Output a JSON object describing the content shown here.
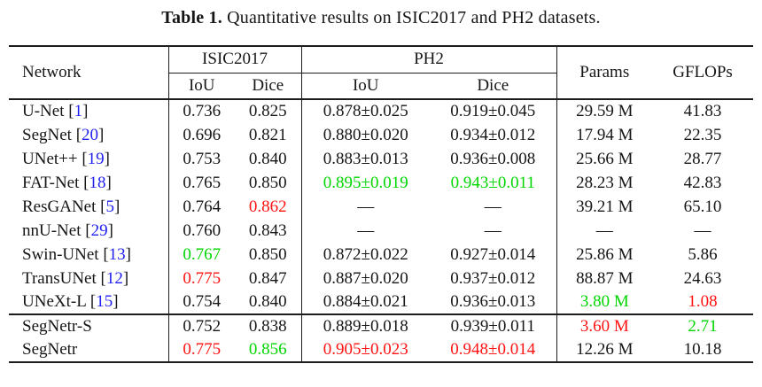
{
  "caption": {
    "label": "Table 1.",
    "text": "Quantitative results on ISIC2017 and PH2 datasets."
  },
  "colors": {
    "citation_blue": "#1f1fee",
    "best_red": "#ff1212",
    "second_best_green": "#00d600",
    "text": "#161616",
    "rule": "#1c1c1c",
    "background": "#ffffff"
  },
  "table": {
    "headers": {
      "network": "Network",
      "group_isic2017": "ISIC2017",
      "group_ph2": "PH2",
      "sub": [
        "IoU",
        "Dice",
        "IoU",
        "Dice"
      ],
      "params": "Params",
      "gflops": "GFLOPs"
    },
    "rows": [
      {
        "network": "U-Net",
        "cite": "1",
        "cells": [
          {
            "v": "0.736"
          },
          {
            "v": "0.825"
          },
          {
            "v": "0.878±0.025"
          },
          {
            "v": "0.919±0.045"
          },
          {
            "v": "29.59 M"
          },
          {
            "v": "41.83"
          }
        ]
      },
      {
        "network": "SegNet",
        "cite": "20",
        "cells": [
          {
            "v": "0.696"
          },
          {
            "v": "0.821"
          },
          {
            "v": "0.880±0.020"
          },
          {
            "v": "0.934±0.012"
          },
          {
            "v": "17.94 M"
          },
          {
            "v": "22.35"
          }
        ]
      },
      {
        "network": "UNet++",
        "cite": "19",
        "cells": [
          {
            "v": "0.753"
          },
          {
            "v": "0.840"
          },
          {
            "v": "0.883±0.013"
          },
          {
            "v": "0.936±0.008"
          },
          {
            "v": "25.66 M"
          },
          {
            "v": "28.77"
          }
        ]
      },
      {
        "network": "FAT-Net",
        "cite": "18",
        "cells": [
          {
            "v": "0.765"
          },
          {
            "v": "0.850"
          },
          {
            "v": "0.895±0.019",
            "c": "green"
          },
          {
            "v": "0.943±0.011",
            "c": "green"
          },
          {
            "v": "28.23 M"
          },
          {
            "v": "42.83"
          }
        ]
      },
      {
        "network": "ResGANet",
        "cite": "5",
        "cells": [
          {
            "v": "0.764"
          },
          {
            "v": "0.862",
            "c": "red"
          },
          {
            "v": "—"
          },
          {
            "v": "—"
          },
          {
            "v": "39.21 M"
          },
          {
            "v": "65.10"
          }
        ]
      },
      {
        "network": "nnU-Net",
        "cite": "29",
        "cells": [
          {
            "v": "0.760"
          },
          {
            "v": "0.843"
          },
          {
            "v": "—"
          },
          {
            "v": "—"
          },
          {
            "v": "—"
          },
          {
            "v": "—"
          }
        ]
      },
      {
        "network": "Swin-UNet",
        "cite": "13",
        "cells": [
          {
            "v": "0.767",
            "c": "green"
          },
          {
            "v": "0.850"
          },
          {
            "v": "0.872±0.022"
          },
          {
            "v": "0.927±0.014"
          },
          {
            "v": "25.86 M"
          },
          {
            "v": "5.86"
          }
        ]
      },
      {
        "network": "TransUNet",
        "cite": "12",
        "cells": [
          {
            "v": "0.775",
            "c": "red"
          },
          {
            "v": "0.847"
          },
          {
            "v": "0.887±0.020"
          },
          {
            "v": "0.937±0.012"
          },
          {
            "v": "88.87 M"
          },
          {
            "v": "24.63"
          }
        ]
      },
      {
        "network": "UNeXt-L",
        "cite": "15",
        "cells": [
          {
            "v": "0.754"
          },
          {
            "v": "0.840"
          },
          {
            "v": "0.884±0.021"
          },
          {
            "v": "0.936±0.013"
          },
          {
            "v": "3.80 M",
            "c": "green"
          },
          {
            "v": "1.08",
            "c": "red"
          }
        ]
      },
      {
        "network": "SegNetr-S",
        "cite": null,
        "rule_above": true,
        "cells": [
          {
            "v": "0.752"
          },
          {
            "v": "0.838"
          },
          {
            "v": "0.889±0.018"
          },
          {
            "v": "0.939±0.011"
          },
          {
            "v": "3.60 M",
            "c": "red"
          },
          {
            "v": "2.71",
            "c": "green"
          }
        ]
      },
      {
        "network": "SegNetr",
        "cite": null,
        "cells": [
          {
            "v": "0.775",
            "c": "red"
          },
          {
            "v": "0.856",
            "c": "green"
          },
          {
            "v": "0.905±0.023",
            "c": "red"
          },
          {
            "v": "0.948±0.014",
            "c": "red"
          },
          {
            "v": "12.26 M"
          },
          {
            "v": "10.18"
          }
        ]
      }
    ]
  }
}
